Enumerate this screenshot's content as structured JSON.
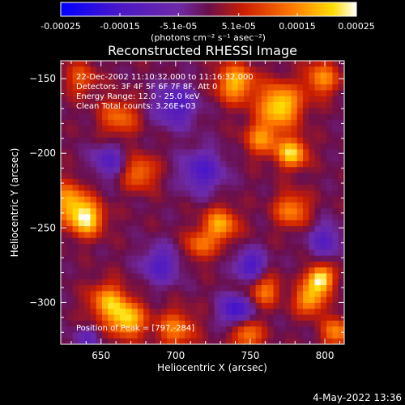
{
  "colorbar": {
    "min": -0.00025,
    "max": 0.00025,
    "tick_labels": [
      "-0.00025",
      "-0.00015",
      "-5.1e-05",
      "5.1e-05",
      "0.00015",
      "0.00025"
    ],
    "units_label": "(photons cm⁻² s⁻¹ asec⁻²)",
    "colormap": [
      {
        "pos": 0.0,
        "color": "#0000ff"
      },
      {
        "pos": 0.2,
        "color": "#4b17c8"
      },
      {
        "pos": 0.4,
        "color": "#6e2aa6"
      },
      {
        "pos": 0.5,
        "color": "#6a0f4c"
      },
      {
        "pos": 0.62,
        "color": "#cc1e00"
      },
      {
        "pos": 0.78,
        "color": "#ff7700"
      },
      {
        "pos": 0.92,
        "color": "#ffdd00"
      },
      {
        "pos": 1.0,
        "color": "#ffffff"
      }
    ]
  },
  "chart_data": {
    "type": "heatmap",
    "title": "Reconstructed RHESSI Image",
    "xlabel": "Heliocentric X (arcsec)",
    "ylabel": "Heliocentric Y (arcsec)",
    "xlim": [
      623,
      813
    ],
    "ylim": [
      -328,
      -138
    ],
    "xticks": [
      650,
      700,
      750,
      800
    ],
    "yticks": [
      -150,
      -200,
      -250,
      -300
    ],
    "info_lines": [
      "22-Dec-2002 11:10:32.000 to 11:16:32.000",
      "Detectors: 3F 4F 5F 6F 7F 8F, Att 0",
      "Energy Range: 12.0 - 25.0 keV",
      "Clean     Total counts: 3.26E+03"
    ],
    "peak_label": "Position of Peak = [797,-284]",
    "peak": [
      797,
      -284
    ],
    "image_grid_size": 48,
    "sources": [
      {
        "x": 797,
        "y": -284,
        "sigma": 6,
        "amp": 1.0
      },
      {
        "x": 790,
        "y": -298,
        "sigma": 7,
        "amp": 0.75
      },
      {
        "x": 640,
        "y": -244,
        "sigma": 8,
        "amp": 0.9
      },
      {
        "x": 628,
        "y": -232,
        "sigma": 9,
        "amp": 0.65
      },
      {
        "x": 655,
        "y": -300,
        "sigma": 9,
        "amp": 0.7
      },
      {
        "x": 668,
        "y": -312,
        "sigma": 8,
        "amp": 0.8
      },
      {
        "x": 700,
        "y": -318,
        "sigma": 9,
        "amp": 0.55
      },
      {
        "x": 676,
        "y": -213,
        "sigma": 8,
        "amp": 0.55
      },
      {
        "x": 662,
        "y": -176,
        "sigma": 9,
        "amp": 0.5
      },
      {
        "x": 740,
        "y": -153,
        "sigma": 9,
        "amp": 0.75
      },
      {
        "x": 770,
        "y": -168,
        "sigma": 10,
        "amp": 0.9
      },
      {
        "x": 758,
        "y": -190,
        "sigma": 8,
        "amp": 0.6
      },
      {
        "x": 778,
        "y": -200,
        "sigma": 7,
        "amp": 0.85
      },
      {
        "x": 798,
        "y": -150,
        "sigma": 8,
        "amp": 0.6
      },
      {
        "x": 730,
        "y": -248,
        "sigma": 8,
        "amp": 0.7
      },
      {
        "x": 716,
        "y": -262,
        "sigma": 7,
        "amp": 0.5
      },
      {
        "x": 778,
        "y": -238,
        "sigma": 8,
        "amp": 0.6
      },
      {
        "x": 760,
        "y": -292,
        "sigma": 7,
        "amp": 0.55
      },
      {
        "x": 748,
        "y": -322,
        "sigma": 7,
        "amp": 0.6
      },
      {
        "x": 808,
        "y": -320,
        "sigma": 7,
        "amp": 0.6
      },
      {
        "x": 636,
        "y": -150,
        "sigma": 8,
        "amp": 0.4
      },
      {
        "x": 700,
        "y": -168,
        "sigma": 10,
        "amp": -0.55
      },
      {
        "x": 718,
        "y": -212,
        "sigma": 10,
        "amp": -0.55
      },
      {
        "x": 690,
        "y": -275,
        "sigma": 9,
        "amp": -0.5
      },
      {
        "x": 740,
        "y": -305,
        "sigma": 7,
        "amp": -0.7
      },
      {
        "x": 750,
        "y": -275,
        "sigma": 7,
        "amp": -0.6
      },
      {
        "x": 655,
        "y": -205,
        "sigma": 8,
        "amp": -0.45
      },
      {
        "x": 800,
        "y": -258,
        "sigma": 8,
        "amp": -0.45
      },
      {
        "x": 640,
        "y": -325,
        "sigma": 6,
        "amp": -0.35
      }
    ]
  },
  "footer_timestamp": "4-May-2022 13:36"
}
